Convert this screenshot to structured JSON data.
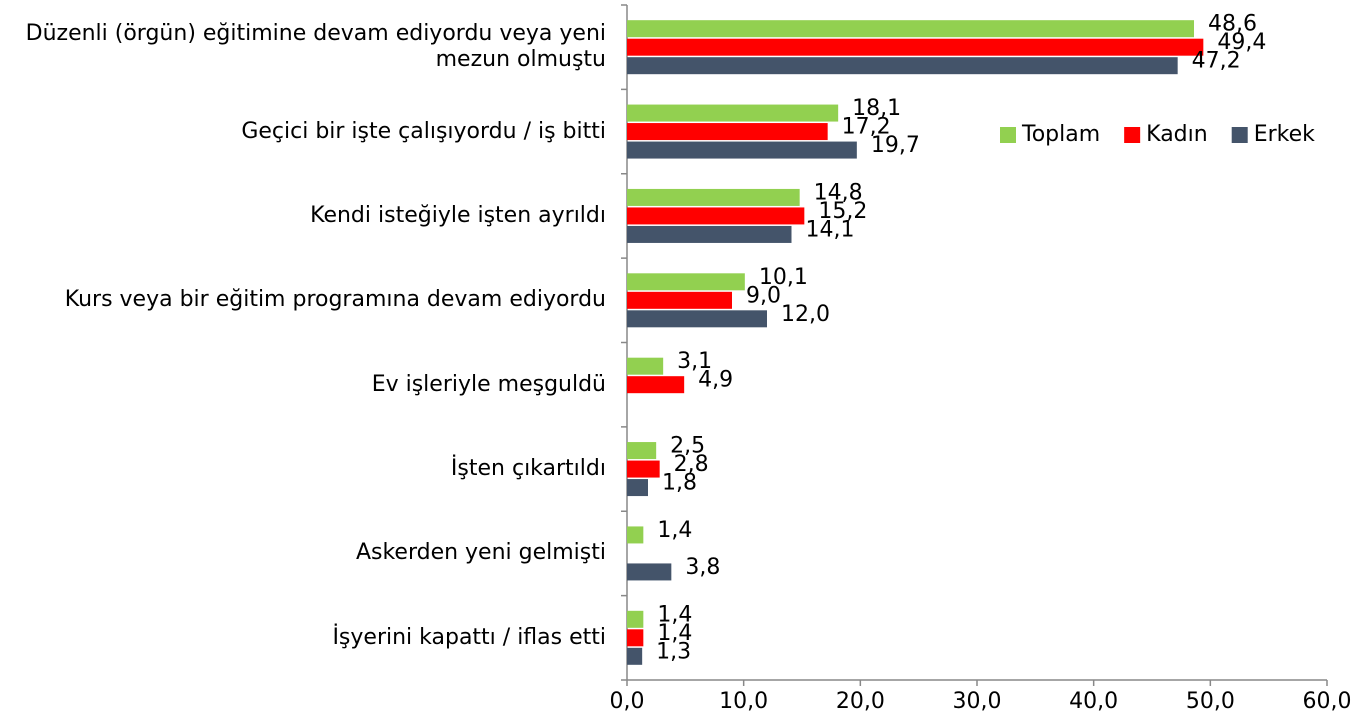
{
  "chart_data": {
    "type": "bar",
    "orientation": "horizontal",
    "categories": [
      "Düzenli (örgün) eğitimine devam ediyordu veya yeni mezun olmuştu",
      "Geçici bir işte çalışıyordu / iş bitti",
      "Kendi isteğiyle işten ayrıldı",
      "Kurs veya bir eğitim programına devam ediyordu",
      "Ev işleriyle meşguldü",
      "İşten çıkartıldı",
      "Askerden yeni gelmişti",
      "İşyerini kapattı / iflas etti"
    ],
    "series": [
      {
        "name": "Toplam",
        "color": "#92d050",
        "values": [
          48.6,
          18.1,
          14.8,
          10.1,
          3.1,
          2.5,
          1.4,
          1.4
        ],
        "value_labels": [
          "48,6",
          "18,1",
          "14,8",
          "10,1",
          "3,1",
          "2,5",
          "1,4",
          "1,4"
        ]
      },
      {
        "name": "Kadın",
        "color": "#ff0000",
        "values": [
          49.4,
          17.2,
          15.2,
          9.0,
          4.9,
          2.8,
          null,
          1.4
        ],
        "value_labels": [
          "49,4",
          "17,2",
          "15,2",
          "9,0",
          "4,9",
          "2,8",
          null,
          "1,4"
        ]
      },
      {
        "name": "Erkek",
        "color": "#44546a",
        "values": [
          47.2,
          19.7,
          14.1,
          12.0,
          null,
          1.8,
          3.8,
          1.3
        ],
        "value_labels": [
          "47,2",
          "19,7",
          "14,1",
          "12,0",
          null,
          "1,8",
          "3,8",
          "1,3"
        ]
      }
    ],
    "xlim": [
      0,
      60
    ],
    "xticks": [
      {
        "value": 0,
        "label": "0,0"
      },
      {
        "value": 10,
        "label": "10,0"
      },
      {
        "value": 20,
        "label": "20,0"
      },
      {
        "value": 30,
        "label": "30,0"
      },
      {
        "value": 40,
        "label": "40,0"
      },
      {
        "value": 50,
        "label": "50,0"
      },
      {
        "value": 60,
        "label": "60,0"
      }
    ],
    "legend": "top-right",
    "grid": false
  }
}
